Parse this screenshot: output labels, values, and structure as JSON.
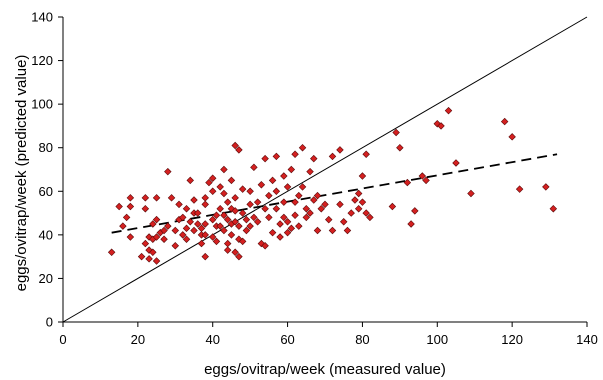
{
  "chart_data": {
    "type": "scatter",
    "title": "",
    "xlabel": "eggs/ovitrap/week (measured value)",
    "ylabel": "eggs/ovitrap/week  (predicted value)",
    "xlim": [
      0,
      140
    ],
    "ylim": [
      0,
      140
    ],
    "xticks": [
      0,
      20,
      40,
      60,
      80,
      100,
      120,
      140
    ],
    "yticks": [
      0,
      20,
      40,
      60,
      80,
      100,
      120,
      140
    ],
    "grid": false,
    "legend": "none",
    "colors": {
      "marker_fill": "#d42020",
      "marker_stroke": "#5a0a0a",
      "line": "#000000"
    },
    "series": [
      {
        "kind": "points",
        "points": [
          [
            13,
            32
          ],
          [
            15,
            53
          ],
          [
            16,
            44
          ],
          [
            17,
            48
          ],
          [
            18,
            57
          ],
          [
            18,
            53
          ],
          [
            18,
            39
          ],
          [
            21,
            30
          ],
          [
            22,
            57
          ],
          [
            22,
            52
          ],
          [
            22,
            36
          ],
          [
            23,
            33
          ],
          [
            23,
            39
          ],
          [
            23,
            29
          ],
          [
            24,
            45
          ],
          [
            24,
            38
          ],
          [
            24,
            32
          ],
          [
            25,
            57
          ],
          [
            25,
            47
          ],
          [
            25,
            39
          ],
          [
            25,
            28
          ],
          [
            26,
            41
          ],
          [
            27,
            42
          ],
          [
            27,
            38
          ],
          [
            28,
            69
          ],
          [
            28,
            44
          ],
          [
            29,
            57
          ],
          [
            30,
            35
          ],
          [
            30,
            42
          ],
          [
            31,
            54
          ],
          [
            31,
            47
          ],
          [
            32,
            40
          ],
          [
            32,
            48
          ],
          [
            33,
            38
          ],
          [
            33,
            52
          ],
          [
            33,
            43
          ],
          [
            34,
            65
          ],
          [
            34,
            46
          ],
          [
            35,
            56
          ],
          [
            35,
            42
          ],
          [
            35,
            50
          ],
          [
            36,
            50
          ],
          [
            36,
            45
          ],
          [
            37,
            43
          ],
          [
            37,
            40
          ],
          [
            37,
            36
          ],
          [
            38,
            57
          ],
          [
            38,
            54
          ],
          [
            38,
            45
          ],
          [
            38,
            40
          ],
          [
            38,
            30
          ],
          [
            39,
            64
          ],
          [
            40,
            66
          ],
          [
            40,
            60
          ],
          [
            40,
            47
          ],
          [
            40,
            39
          ],
          [
            41,
            49
          ],
          [
            41,
            44
          ],
          [
            41,
            37
          ],
          [
            42,
            62
          ],
          [
            42,
            52
          ],
          [
            42,
            44
          ],
          [
            43,
            70
          ],
          [
            43,
            59
          ],
          [
            43,
            49
          ],
          [
            43,
            42
          ],
          [
            44,
            47
          ],
          [
            44,
            55
          ],
          [
            44,
            36
          ],
          [
            44,
            33
          ],
          [
            45,
            65
          ],
          [
            45,
            52
          ],
          [
            45,
            45
          ],
          [
            45,
            40
          ],
          [
            46,
            81
          ],
          [
            46,
            57
          ],
          [
            46,
            51
          ],
          [
            46,
            46
          ],
          [
            46,
            32
          ],
          [
            47,
            79
          ],
          [
            47,
            44
          ],
          [
            47,
            38
          ],
          [
            47,
            30
          ],
          [
            48,
            61
          ],
          [
            48,
            50
          ],
          [
            48,
            37
          ],
          [
            49,
            47
          ],
          [
            49,
            42
          ],
          [
            50,
            60
          ],
          [
            50,
            54
          ],
          [
            50,
            44
          ],
          [
            51,
            71
          ],
          [
            51,
            48
          ],
          [
            52,
            55
          ],
          [
            52,
            46
          ],
          [
            53,
            63
          ],
          [
            53,
            36
          ],
          [
            54,
            75
          ],
          [
            54,
            52
          ],
          [
            54,
            35
          ],
          [
            55,
            58
          ],
          [
            55,
            48
          ],
          [
            56,
            65
          ],
          [
            56,
            41
          ],
          [
            57,
            76
          ],
          [
            57,
            60
          ],
          [
            57,
            52
          ],
          [
            58,
            45
          ],
          [
            58,
            39
          ],
          [
            59,
            67
          ],
          [
            59,
            55
          ],
          [
            59,
            48
          ],
          [
            60,
            62
          ],
          [
            60,
            46
          ],
          [
            60,
            41
          ],
          [
            61,
            70
          ],
          [
            61,
            43
          ],
          [
            62,
            77
          ],
          [
            62,
            55
          ],
          [
            62,
            49
          ],
          [
            63,
            58
          ],
          [
            63,
            44
          ],
          [
            64,
            80
          ],
          [
            64,
            62
          ],
          [
            65,
            52
          ],
          [
            65,
            48
          ],
          [
            66,
            69
          ],
          [
            66,
            50
          ],
          [
            67,
            75
          ],
          [
            67,
            56
          ],
          [
            68,
            58
          ],
          [
            68,
            42
          ],
          [
            69,
            52
          ],
          [
            70,
            54
          ],
          [
            71,
            47
          ],
          [
            72,
            76
          ],
          [
            72,
            42
          ],
          [
            74,
            79
          ],
          [
            74,
            54
          ],
          [
            75,
            46
          ],
          [
            76,
            42
          ],
          [
            77,
            50
          ],
          [
            78,
            56
          ],
          [
            79,
            59
          ],
          [
            79,
            52
          ],
          [
            80,
            67
          ],
          [
            80,
            55
          ],
          [
            81,
            77
          ],
          [
            81,
            50
          ],
          [
            82,
            48
          ],
          [
            88,
            53
          ],
          [
            89,
            87
          ],
          [
            90,
            80
          ],
          [
            92,
            64
          ],
          [
            93,
            45
          ],
          [
            94,
            51
          ],
          [
            96,
            67
          ],
          [
            97,
            65
          ],
          [
            100,
            91
          ],
          [
            101,
            90
          ],
          [
            103,
            97
          ],
          [
            105,
            73
          ],
          [
            109,
            59
          ],
          [
            118,
            92
          ],
          [
            120,
            85
          ],
          [
            122,
            61
          ],
          [
            129,
            62
          ],
          [
            131,
            52
          ]
        ]
      },
      {
        "kind": "line",
        "name": "",
        "style": "solid",
        "points": [
          [
            0,
            0
          ],
          [
            140,
            140
          ]
        ]
      },
      {
        "kind": "line",
        "name": "",
        "style": "dashed",
        "points": [
          [
            13,
            41
          ],
          [
            132,
            77
          ]
        ]
      }
    ]
  }
}
